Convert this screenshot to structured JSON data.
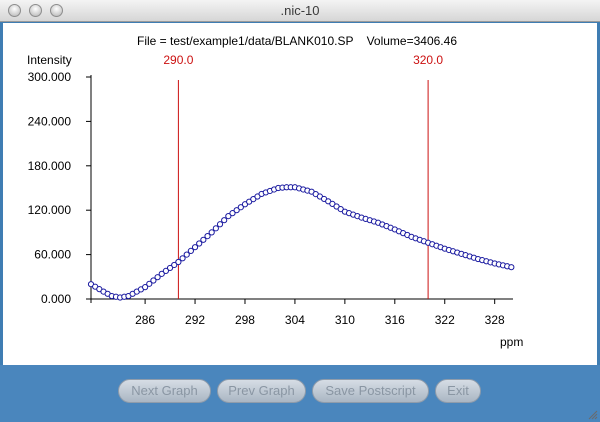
{
  "window": {
    "title": ".nic-10"
  },
  "header": {
    "file_line": "File = test/example1/data/BLANK010.SP    Volume=3406.46"
  },
  "chart_data": {
    "type": "scatter",
    "ylabel": "Intensity",
    "xlabel": "ppm",
    "xlim": [
      279.5,
      330.2
    ],
    "ylim": [
      0,
      300
    ],
    "x_ticks": [
      "286",
      "292",
      "298",
      "304",
      "310",
      "316",
      "322",
      "328"
    ],
    "y_ticks": [
      "0.000",
      "60.000",
      "120.000",
      "180.000",
      "240.000",
      "300.000"
    ],
    "markers": [
      {
        "label": "290.0",
        "x": 290.0
      },
      {
        "label": "320.0",
        "x": 320.0
      }
    ],
    "marker_color": "#cc1111",
    "point_color": "#1a1aa0",
    "profile_x": [
      279.5,
      281,
      282,
      283,
      284,
      286,
      288,
      290,
      292,
      294,
      296,
      298,
      300,
      302,
      303,
      304,
      306,
      308,
      310,
      312,
      314,
      316,
      318,
      320,
      322,
      324,
      326,
      328,
      330
    ],
    "profile_y": [
      20,
      10,
      4,
      2,
      4,
      16,
      34,
      50,
      70,
      90,
      112,
      128,
      142,
      150,
      151,
      151,
      145,
      132,
      118,
      110,
      103,
      94,
      84,
      76,
      68,
      61,
      54,
      48,
      43
    ]
  },
  "buttons": {
    "next_graph": "Next Graph",
    "prev_graph": "Prev Graph",
    "save_postscript": "Save Postscript",
    "exit": "Exit"
  }
}
